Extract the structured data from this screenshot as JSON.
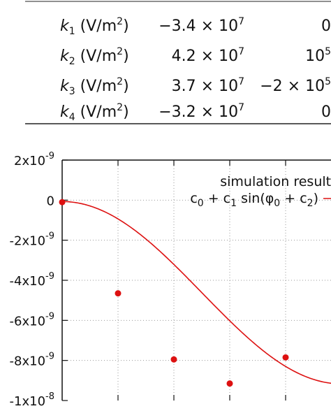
{
  "table": {
    "rows": [
      {
        "symbol": "k",
        "sub": "1",
        "unit": " (V/m",
        "unit_sup": "2",
        "unit_close": ")",
        "v1": "−3.4 × 10",
        "v1_exp": "7",
        "v2": "0",
        "v2_exp": ""
      },
      {
        "symbol": "k",
        "sub": "2",
        "unit": " (V/m",
        "unit_sup": "2",
        "unit_close": ")",
        "v1": "4.2 × 10",
        "v1_exp": "7",
        "v2": "10",
        "v2_exp": "5"
      },
      {
        "symbol": "k",
        "sub": "3",
        "unit": " (V/m",
        "unit_sup": "2",
        "unit_close": ")",
        "v1": "3.7 × 10",
        "v1_exp": "7",
        "v2": "−2 × 10",
        "v2_exp": "5"
      },
      {
        "symbol": "k",
        "sub": "4",
        "unit": " (V/m",
        "unit_sup": "2",
        "unit_close": ")",
        "v1": "−3.2 × 10",
        "v1_exp": "7",
        "v2": "0",
        "v2_exp": ""
      }
    ]
  },
  "chart_data": {
    "type": "scatter",
    "title": "",
    "xlabel": "",
    "ylabel": "",
    "ylim": [
      -1e-08,
      2e-09
    ],
    "xlim": [
      0,
      5
    ],
    "grid": true,
    "legend_position": "top-right",
    "y_ticks": [
      {
        "value": 2e-09,
        "mant": "2x10",
        "exp": "-9"
      },
      {
        "value": 0,
        "mant": "0",
        "exp": ""
      },
      {
        "value": -2e-09,
        "mant": "-2x10",
        "exp": "-9"
      },
      {
        "value": -4e-09,
        "mant": "-4x10",
        "exp": "-9"
      },
      {
        "value": -6e-09,
        "mant": "-6x10",
        "exp": "-9"
      },
      {
        "value": -8e-09,
        "mant": "-8x10",
        "exp": "-9"
      },
      {
        "value": -1e-08,
        "mant": "-1x10",
        "exp": "-8"
      }
    ],
    "x_gridlines": [
      1,
      2,
      3,
      4,
      5
    ],
    "series": [
      {
        "name": "simulation results",
        "kind": "points",
        "color": "#dd1111",
        "x": [
          0,
          1,
          2,
          3,
          4
        ],
        "y": [
          -1e-10,
          -4.65e-09,
          -7.95e-09,
          -9.15e-09,
          -7.85e-09
        ]
      },
      {
        "name": "c0 + c1 sin(φ0 + c2)",
        "kind": "line",
        "color": "#dd1111",
        "c0": -4.62e-09,
        "c1": 4.55e-09,
        "c2": 1.57,
        "omega": 0.6283,
        "x_range": [
          0,
          5
        ]
      }
    ],
    "legend": {
      "line1": "simulation results",
      "line2_parts": [
        "c",
        "0",
        " + c",
        "1",
        " sin(φ",
        "0",
        " + c",
        "2",
        ")"
      ]
    }
  }
}
